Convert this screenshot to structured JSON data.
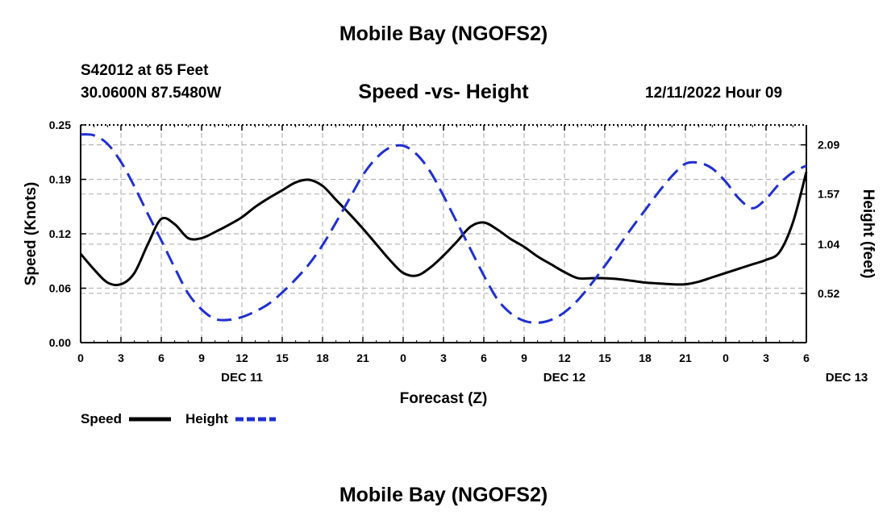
{
  "header": {
    "title": "Mobile Bay (NGOFS2)",
    "station": "S42012 at 65 Feet",
    "coords": "30.0600N  87.5480W",
    "subtitle": "Speed -vs- Height",
    "timestamp": "12/11/2022 Hour 09"
  },
  "footer": {
    "title": "Mobile Bay (NGOFS2)"
  },
  "chart_data": {
    "type": "line",
    "title": "Speed -vs- Height",
    "xlabel": "Forecast (Z)",
    "ylabel": "Speed (Knots)",
    "y2label": "Height (feet)",
    "x_ticks": [
      "0",
      "3",
      "6",
      "9",
      "12",
      "15",
      "18",
      "21",
      "0",
      "3",
      "6",
      "9",
      "12",
      "15",
      "18",
      "21",
      "0",
      "3",
      "6"
    ],
    "date_labels": [
      {
        "label": "DEC 11",
        "hour": 12
      },
      {
        "label": "DEC 12",
        "hour": 36
      },
      {
        "label": "DEC 13",
        "hour": 57
      }
    ],
    "xlim": [
      0,
      54
    ],
    "y_ticks": [
      "0.00",
      "0.06",
      "0.12",
      "0.19",
      "0.25"
    ],
    "ylim": [
      0,
      0.25
    ],
    "y2_ticks": [
      "0.52",
      "1.04",
      "1.57",
      "2.09"
    ],
    "y2lim": [
      0,
      2.3
    ],
    "grid": true,
    "legend_position": "bottom-left",
    "series": [
      {
        "name": "Speed",
        "axis": "left",
        "color": "#000000",
        "style": "solid",
        "x": [
          0,
          1,
          2,
          3,
          4,
          5,
          6,
          7,
          8,
          9,
          10,
          11,
          12,
          13,
          14,
          15,
          16,
          17,
          18,
          19,
          20,
          21,
          22,
          23,
          24,
          25,
          26,
          27,
          28,
          29,
          30,
          31,
          32,
          33,
          34,
          35,
          36,
          37,
          38,
          39,
          40,
          41,
          42,
          43,
          44,
          45,
          46,
          47,
          48,
          49,
          50,
          51,
          52,
          53,
          54
        ],
        "values": [
          0.102,
          0.084,
          0.069,
          0.067,
          0.08,
          0.113,
          0.142,
          0.136,
          0.12,
          0.12,
          0.127,
          0.135,
          0.144,
          0.156,
          0.166,
          0.175,
          0.184,
          0.187,
          0.18,
          0.164,
          0.148,
          0.131,
          0.113,
          0.095,
          0.08,
          0.077,
          0.086,
          0.1,
          0.116,
          0.133,
          0.138,
          0.13,
          0.119,
          0.11,
          0.099,
          0.09,
          0.081,
          0.074,
          0.074,
          0.074,
          0.073,
          0.071,
          0.069,
          0.068,
          0.067,
          0.067,
          0.07,
          0.075,
          0.08,
          0.085,
          0.09,
          0.095,
          0.104,
          0.138,
          0.196
        ]
      },
      {
        "name": "Height",
        "axis": "right",
        "color": "#1f2fcf",
        "style": "dashed",
        "x": [
          0,
          1,
          2,
          3,
          4,
          5,
          6,
          7,
          8,
          9,
          10,
          11,
          12,
          13,
          14,
          15,
          16,
          17,
          18,
          19,
          20,
          21,
          22,
          23,
          24,
          25,
          26,
          27,
          28,
          29,
          30,
          31,
          32,
          33,
          34,
          35,
          36,
          37,
          38,
          39,
          40,
          41,
          42,
          43,
          44,
          45,
          46,
          47,
          48,
          49,
          50,
          51,
          52,
          53,
          54
        ],
        "values": [
          2.2,
          2.19,
          2.1,
          1.91,
          1.65,
          1.36,
          1.08,
          0.79,
          0.52,
          0.35,
          0.25,
          0.24,
          0.27,
          0.33,
          0.41,
          0.53,
          0.67,
          0.83,
          1.03,
          1.27,
          1.52,
          1.77,
          1.95,
          2.06,
          2.08,
          1.99,
          1.81,
          1.55,
          1.27,
          0.99,
          0.71,
          0.46,
          0.31,
          0.23,
          0.21,
          0.24,
          0.32,
          0.45,
          0.62,
          0.81,
          1.01,
          1.21,
          1.4,
          1.59,
          1.76,
          1.89,
          1.9,
          1.84,
          1.7,
          1.52,
          1.42,
          1.52,
          1.68,
          1.8,
          1.87
        ]
      }
    ]
  }
}
